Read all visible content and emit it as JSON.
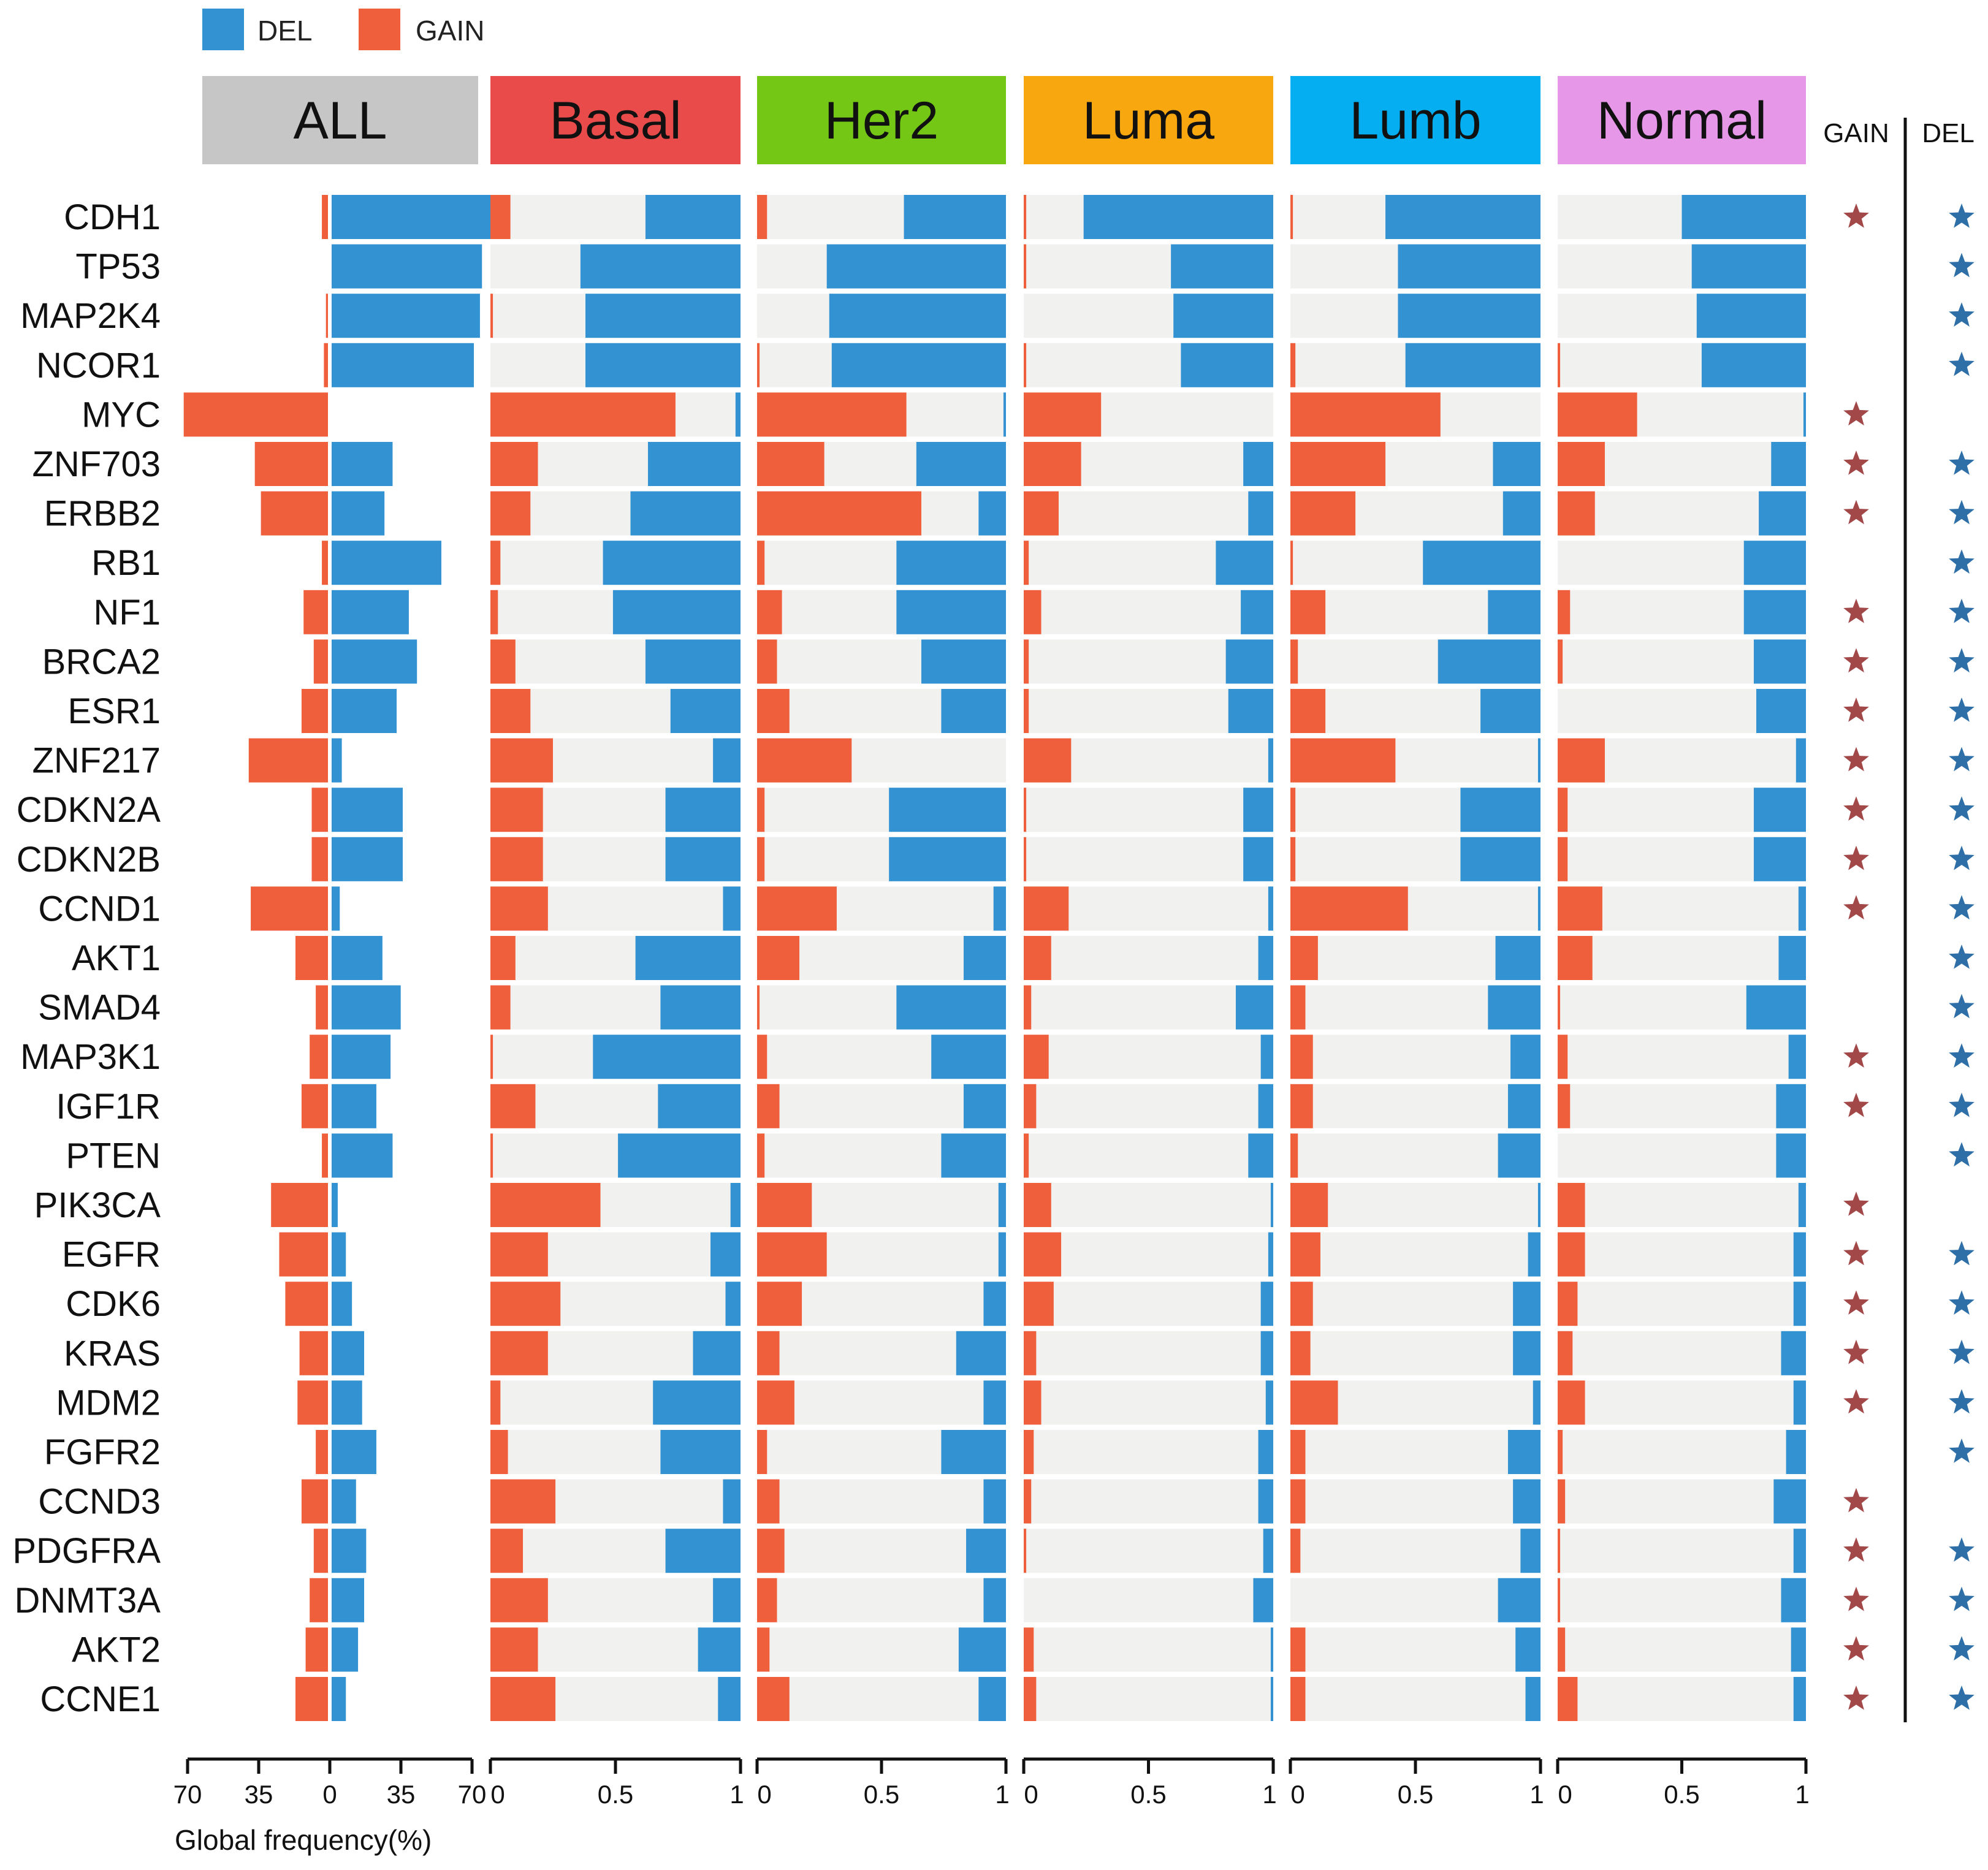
{
  "chart_data": {
    "type": "bar",
    "description_type": "diverging and stacked horizontal bar panels",
    "legend": [
      {
        "label": "DEL",
        "color": "#3292d2"
      },
      {
        "label": "GAIN",
        "color": "#f05f3b"
      }
    ],
    "colors": {
      "del": "#3292d2",
      "gain": "#f05f3b",
      "background": "#f1f1f0",
      "star_gain": "#a24848",
      "star_del": "#2e6fa8"
    },
    "genes": [
      "CDH1",
      "TP53",
      "MAP2K4",
      "NCOR1",
      "MYC",
      "ZNF703",
      "ERBB2",
      "RB1",
      "NF1",
      "BRCA2",
      "ESR1",
      "ZNF217",
      "CDKN2A",
      "CDKN2B",
      "CCND1",
      "AKT1",
      "SMAD4",
      "MAP3K1",
      "IGF1R",
      "PTEN",
      "PIK3CA",
      "EGFR",
      "CDK6",
      "KRAS",
      "MDM2",
      "FGFR2",
      "CCND3",
      "PDGFRA",
      "DNMT3A",
      "AKT2",
      "CCNE1"
    ],
    "all_panel": {
      "title": "ALL",
      "color": "#c6c6c6",
      "axis_label": "Global frequency(%)",
      "axis_ticks": [
        "70",
        "35",
        "0",
        "35",
        "70"
      ],
      "xlim": [
        -70,
        70
      ],
      "gain": [
        3,
        0,
        1,
        2,
        71,
        36,
        33,
        3,
        12,
        7,
        13,
        39,
        8,
        8,
        38,
        16,
        6,
        9,
        13,
        3,
        28,
        24,
        21,
        14,
        15,
        6,
        13,
        7,
        9,
        11,
        16
      ],
      "del": [
        81,
        74,
        73,
        70,
        0,
        30,
        26,
        54,
        38,
        42,
        32,
        5,
        35,
        35,
        4,
        25,
        34,
        29,
        22,
        30,
        3,
        7,
        10,
        16,
        15,
        22,
        12,
        17,
        16,
        13,
        7
      ]
    },
    "panels": [
      {
        "title": "Basal",
        "color": "#e94b4b",
        "axis_ticks": [
          "0",
          "0.5",
          "1"
        ],
        "gain": [
          0.08,
          0,
          0.01,
          0,
          0.74,
          0.19,
          0.16,
          0.04,
          0.03,
          0.1,
          0.16,
          0.25,
          0.21,
          0.21,
          0.23,
          0.1,
          0.08,
          0.01,
          0.18,
          0.01,
          0.44,
          0.23,
          0.28,
          0.23,
          0.04,
          0.07,
          0.26,
          0.13,
          0.23,
          0.19,
          0.26
        ],
        "del": [
          0.38,
          0.64,
          0.62,
          0.62,
          0.02,
          0.37,
          0.44,
          0.55,
          0.51,
          0.38,
          0.28,
          0.11,
          0.3,
          0.3,
          0.07,
          0.42,
          0.32,
          0.59,
          0.33,
          0.49,
          0.04,
          0.12,
          0.06,
          0.19,
          0.35,
          0.32,
          0.07,
          0.3,
          0.11,
          0.17,
          0.09
        ]
      },
      {
        "title": "Her2",
        "color": "#74c815",
        "axis_ticks": [
          "0",
          "0.5",
          "1"
        ],
        "gain": [
          0.04,
          0,
          0,
          0.01,
          0.6,
          0.27,
          0.66,
          0.03,
          0.1,
          0.08,
          0.13,
          0.38,
          0.03,
          0.03,
          0.32,
          0.17,
          0.01,
          0.04,
          0.09,
          0.03,
          0.22,
          0.28,
          0.18,
          0.09,
          0.15,
          0.04,
          0.09,
          0.11,
          0.08,
          0.05,
          0.13
        ],
        "del": [
          0.41,
          0.72,
          0.71,
          0.7,
          0.01,
          0.36,
          0.11,
          0.44,
          0.44,
          0.34,
          0.26,
          0,
          0.47,
          0.47,
          0.05,
          0.17,
          0.44,
          0.3,
          0.17,
          0.26,
          0.03,
          0.03,
          0.09,
          0.2,
          0.09,
          0.26,
          0.09,
          0.16,
          0.09,
          0.19,
          0.11
        ]
      },
      {
        "title": "Luma",
        "color": "#f9a70f",
        "axis_ticks": [
          "0",
          "0.5",
          "1"
        ],
        "gain": [
          0.01,
          0.01,
          0,
          0.01,
          0.31,
          0.23,
          0.14,
          0.02,
          0.07,
          0.02,
          0.02,
          0.19,
          0.01,
          0.01,
          0.18,
          0.11,
          0.03,
          0.1,
          0.05,
          0.02,
          0.11,
          0.15,
          0.12,
          0.05,
          0.07,
          0.04,
          0.03,
          0.01,
          0,
          0.04,
          0.05
        ],
        "del": [
          0.76,
          0.41,
          0.4,
          0.37,
          0,
          0.12,
          0.1,
          0.23,
          0.13,
          0.19,
          0.18,
          0.02,
          0.12,
          0.12,
          0.02,
          0.06,
          0.15,
          0.05,
          0.06,
          0.1,
          0.01,
          0.02,
          0.05,
          0.05,
          0.03,
          0.06,
          0.06,
          0.04,
          0.08,
          0.01,
          0.01
        ]
      },
      {
        "title": "Lumb",
        "color": "#05aef0",
        "axis_ticks": [
          "0",
          "0.5",
          "1"
        ],
        "gain": [
          0.01,
          0,
          0,
          0.02,
          0.6,
          0.38,
          0.26,
          0.01,
          0.14,
          0.03,
          0.14,
          0.42,
          0.02,
          0.02,
          0.47,
          0.11,
          0.06,
          0.09,
          0.09,
          0.03,
          0.15,
          0.12,
          0.09,
          0.08,
          0.19,
          0.06,
          0.06,
          0.04,
          0,
          0.06,
          0.06
        ],
        "del": [
          0.62,
          0.57,
          0.57,
          0.54,
          0,
          0.19,
          0.15,
          0.47,
          0.21,
          0.41,
          0.24,
          0.01,
          0.32,
          0.32,
          0.01,
          0.18,
          0.21,
          0.12,
          0.13,
          0.17,
          0.01,
          0.05,
          0.11,
          0.11,
          0.03,
          0.13,
          0.11,
          0.08,
          0.17,
          0.1,
          0.06
        ]
      },
      {
        "title": "Normal",
        "color": "#e697e8",
        "axis_ticks": [
          "0",
          "0.5",
          "1"
        ],
        "gain": [
          0,
          0,
          0,
          0.01,
          0.32,
          0.19,
          0.15,
          0,
          0.05,
          0.02,
          0,
          0.19,
          0.04,
          0.04,
          0.18,
          0.14,
          0.01,
          0.04,
          0.05,
          0,
          0.11,
          0.11,
          0.08,
          0.06,
          0.11,
          0.02,
          0.03,
          0.01,
          0.01,
          0.03,
          0.08
        ],
        "del": [
          0.5,
          0.46,
          0.44,
          0.42,
          0.01,
          0.14,
          0.19,
          0.25,
          0.25,
          0.21,
          0.2,
          0.04,
          0.21,
          0.21,
          0.03,
          0.11,
          0.24,
          0.07,
          0.12,
          0.12,
          0.03,
          0.05,
          0.05,
          0.1,
          0.05,
          0.08,
          0.13,
          0.05,
          0.1,
          0.06,
          0.05
        ]
      }
    ],
    "significance": {
      "headers": [
        "GAIN",
        "DEL"
      ],
      "gain": [
        true,
        false,
        false,
        false,
        true,
        true,
        true,
        false,
        true,
        true,
        true,
        true,
        true,
        true,
        true,
        false,
        false,
        true,
        true,
        false,
        true,
        true,
        true,
        true,
        true,
        false,
        true,
        true,
        true,
        true,
        true
      ],
      "del": [
        true,
        true,
        true,
        true,
        false,
        true,
        true,
        true,
        true,
        true,
        true,
        true,
        true,
        true,
        true,
        true,
        true,
        true,
        true,
        true,
        false,
        true,
        true,
        true,
        true,
        true,
        false,
        true,
        true,
        true,
        true
      ]
    }
  }
}
